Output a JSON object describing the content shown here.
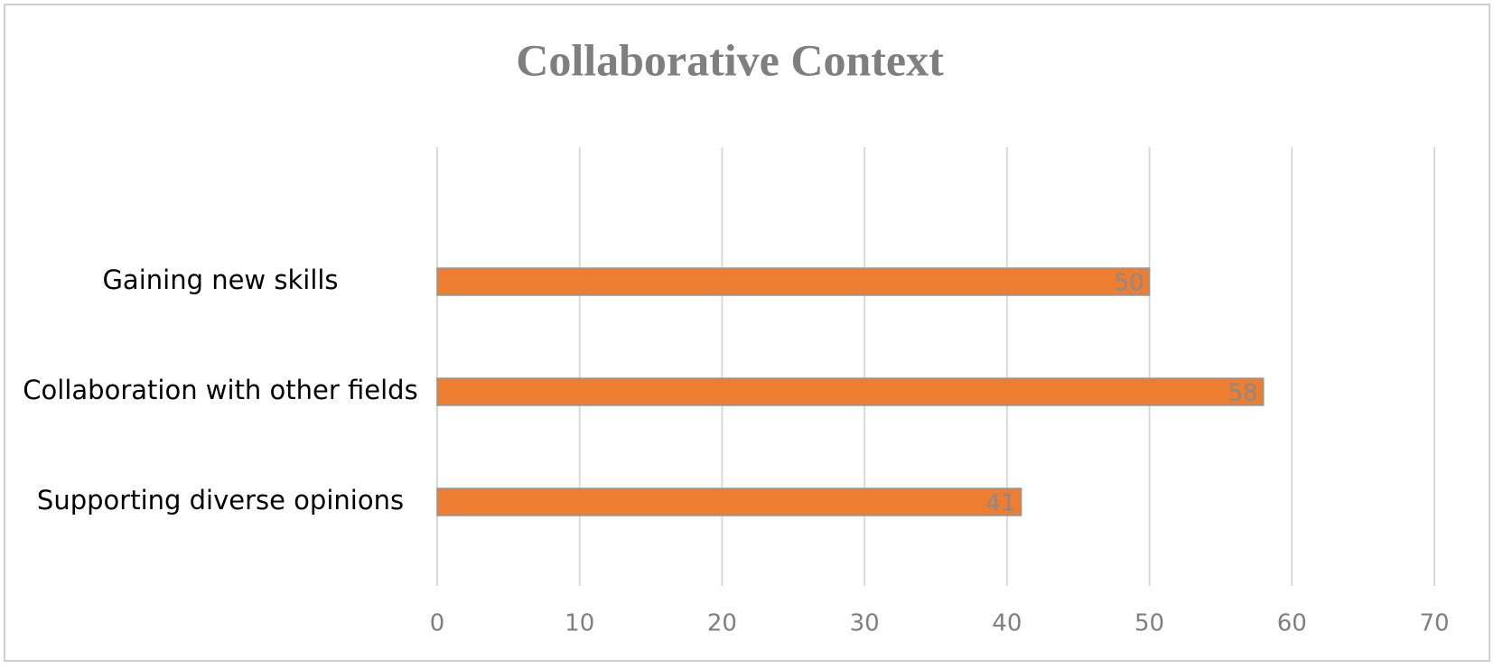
{
  "chart_data": {
    "type": "bar",
    "orientation": "horizontal",
    "title": "Collaborative Context",
    "categories": [
      "Gaining new skills",
      "Collaboration with other fields",
      "Supporting diverse opinions"
    ],
    "values": [
      50,
      58,
      41
    ],
    "color": "#ed7d31",
    "xlim": [
      0,
      70
    ],
    "xticks": [
      0,
      10,
      20,
      30,
      40,
      50,
      60,
      70
    ],
    "grid": true,
    "data_labels": true
  }
}
